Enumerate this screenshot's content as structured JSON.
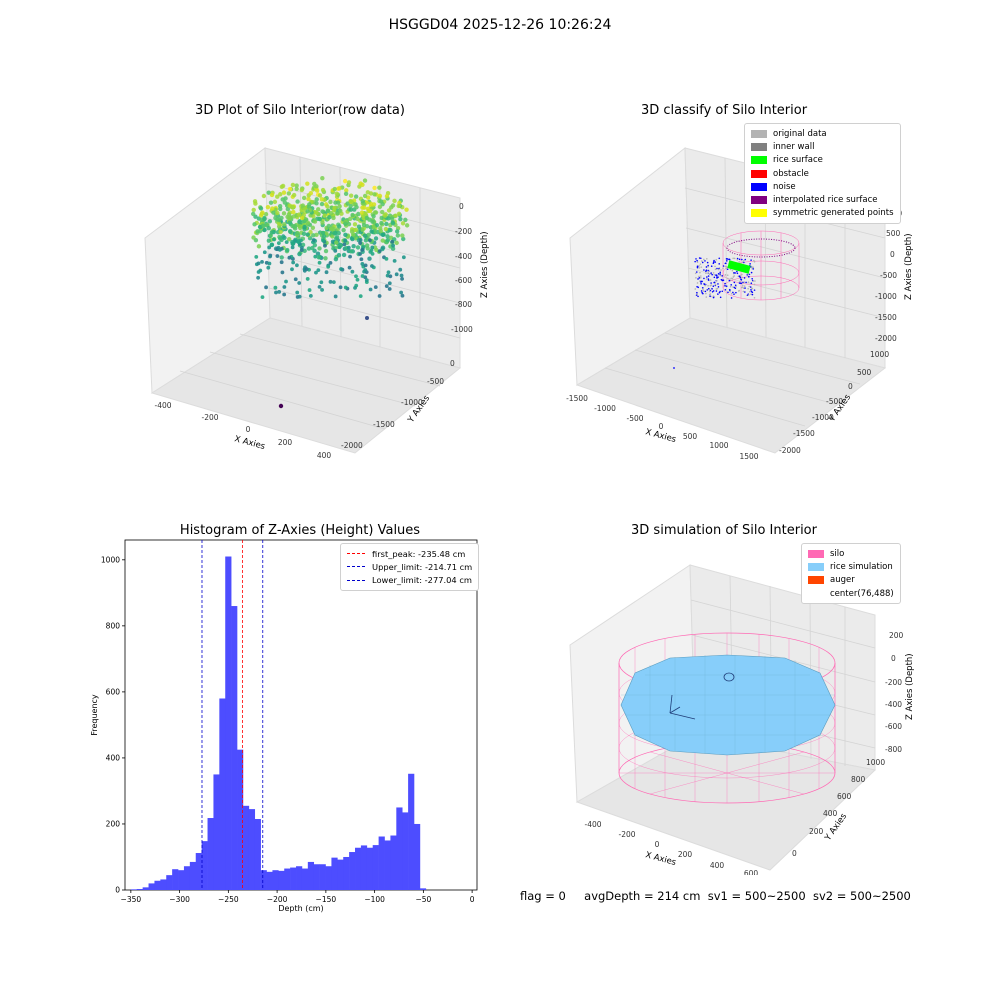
{
  "figure_title": "HSGGD04 2025-12-26 10:26:24",
  "footer": {
    "flag": "flag = 0",
    "avg_depth": "avgDepth = 214 cm",
    "sv1": "sv1 = 500~2500",
    "sv2": "sv2 = 500~2500"
  },
  "colors": {
    "hist_bar": "#4d4dff",
    "peak_line": "#ff0000",
    "limit_line": "#0000cc",
    "silo": "#ff69b4",
    "rice": "#87cefa",
    "auger": "#ff4500"
  },
  "chart_data": [
    {
      "type": "scatter3d",
      "title": "3D Plot of Silo Interior(row data)",
      "xlabel": "X Axies",
      "ylabel": "Y Axies",
      "zlabel": "Z Axies (Depth)",
      "xticks": [
        "-400",
        "-200",
        "0",
        "200",
        "400"
      ],
      "yticks": [
        "0",
        "-500",
        "-1000",
        "-1500",
        "-2000"
      ],
      "zticks": [
        "0",
        "-200",
        "-400",
        "-600",
        "-800",
        "-1000"
      ],
      "colormap": "viridis"
    },
    {
      "type": "scatter3d",
      "title": "3D classify of Silo Interior",
      "xlabel": "X Axies",
      "ylabel": "Y Axies",
      "zlabel": "Z Axies (Depth)",
      "xticks": [
        "-1500",
        "-1000",
        "-500",
        "0",
        "500",
        "1000",
        "1500"
      ],
      "yticks": [
        "1000",
        "500",
        "0",
        "-500",
        "-1000",
        "-1500",
        "-2000"
      ],
      "zticks": [
        "1000",
        "500",
        "0",
        "-500",
        "-1000",
        "-1500",
        "-2000"
      ],
      "legend": [
        {
          "label": "original data",
          "color": "#b3b3b3"
        },
        {
          "label": "inner wall",
          "color": "#808080"
        },
        {
          "label": "rice surface",
          "color": "#00ff00"
        },
        {
          "label": "obstacle",
          "color": "#ff0000"
        },
        {
          "label": "noise",
          "color": "#0000ff"
        },
        {
          "label": "interpolated rice surface",
          "color": "#800080"
        },
        {
          "label": "symmetric generated points",
          "color": "#ffff00"
        }
      ]
    },
    {
      "type": "bar",
      "title": "Histogram of Z-Axies (Height) Values",
      "xlabel": "Depth (cm)",
      "ylabel": "Frequency",
      "xlim": [
        -356,
        5
      ],
      "ylim": [
        0,
        1060
      ],
      "xticks": [
        -350,
        -300,
        -250,
        -200,
        -150,
        -100,
        -50,
        0
      ],
      "yticks": [
        0,
        200,
        400,
        600,
        800,
        1000
      ],
      "bin_width": 6.05,
      "bin_start": -350,
      "values": [
        2,
        3,
        8,
        20,
        28,
        32,
        45,
        63,
        60,
        72,
        85,
        112,
        148,
        218,
        350,
        580,
        1010,
        860,
        425,
        255,
        245,
        215,
        60,
        55,
        60,
        58,
        65,
        68,
        72,
        65,
        85,
        78,
        78,
        72,
        98,
        92,
        100,
        115,
        128,
        135,
        128,
        136,
        162,
        150,
        165,
        250,
        235,
        352,
        200,
        5
      ],
      "lines": [
        {
          "label": "first_peak: -235.48 cm",
          "x": -235.48,
          "color": "#ff0000"
        },
        {
          "label": "Upper_limit: -214.71 cm",
          "x": -214.71,
          "color": "#0000cc"
        },
        {
          "label": "Lower_limit: -277.04 cm",
          "x": -277.04,
          "color": "#0000cc"
        }
      ],
      "legend_position": "upper right"
    },
    {
      "type": "surface3d",
      "title": "3D simulation of Silo Interior",
      "xlabel": "X Axies",
      "ylabel": "Y Axies",
      "zlabel": "Z Axies (Depth)",
      "xticks": [
        "-400",
        "-200",
        "0",
        "200",
        "400",
        "600"
      ],
      "yticks": [
        "0",
        "200",
        "400",
        "600",
        "800",
        "1000"
      ],
      "zticks": [
        "200",
        "0",
        "-200",
        "-400",
        "-600",
        "-800"
      ],
      "legend": [
        {
          "label": "silo",
          "color": "#ff69b4"
        },
        {
          "label": "rice simulation",
          "color": "#87cefa"
        },
        {
          "label": "auger",
          "color": "#ff4500"
        },
        {
          "label": "center(76,488)",
          "color": ""
        }
      ]
    }
  ]
}
